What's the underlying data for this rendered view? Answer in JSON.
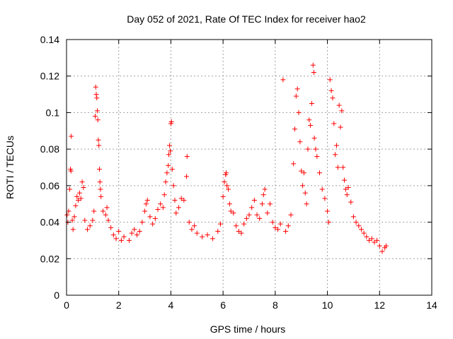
{
  "chart_data": {
    "type": "scatter",
    "title": "Day 052 of 2021, Rate Of TEC Index for receiver hao2",
    "xlabel": "GPS time / hours",
    "ylabel": "ROTI / TECUs",
    "xlim": [
      0,
      14
    ],
    "ylim": [
      0,
      0.14
    ],
    "x_ticks": [
      "0",
      "2",
      "4",
      "6",
      "8",
      "10",
      "12",
      "14"
    ],
    "y_ticks": [
      "0",
      "0.02",
      "0.04",
      "0.06",
      "0.08",
      "0.1",
      "0.12",
      "0.14"
    ],
    "grid": true,
    "marker": "plus",
    "series": [
      {
        "color": "#ff0000",
        "points": [
          [
            0.02,
            0.044
          ],
          [
            0.05,
            0.04
          ],
          [
            0.08,
            0.046
          ],
          [
            0.12,
            0.058
          ],
          [
            0.15,
            0.069
          ],
          [
            0.17,
            0.068
          ],
          [
            0.18,
            0.087
          ],
          [
            0.22,
            0.041
          ],
          [
            0.25,
            0.036
          ],
          [
            0.3,
            0.043
          ],
          [
            0.35,
            0.049
          ],
          [
            0.4,
            0.054
          ],
          [
            0.45,
            0.052
          ],
          [
            0.5,
            0.056
          ],
          [
            0.55,
            0.053
          ],
          [
            0.6,
            0.062
          ],
          [
            0.65,
            0.059
          ],
          [
            0.7,
            0.041
          ],
          [
            0.8,
            0.036
          ],
          [
            0.9,
            0.038
          ],
          [
            1.0,
            0.041
          ],
          [
            1.05,
            0.046
          ],
          [
            1.1,
            0.098
          ],
          [
            1.12,
            0.114
          ],
          [
            1.14,
            0.11
          ],
          [
            1.16,
            0.108
          ],
          [
            1.18,
            0.101
          ],
          [
            1.2,
            0.096
          ],
          [
            1.22,
            0.085
          ],
          [
            1.24,
            0.082
          ],
          [
            1.26,
            0.069
          ],
          [
            1.28,
            0.062
          ],
          [
            1.3,
            0.058
          ],
          [
            1.32,
            0.054
          ],
          [
            1.4,
            0.046
          ],
          [
            1.5,
            0.044
          ],
          [
            1.55,
            0.048
          ],
          [
            1.6,
            0.041
          ],
          [
            1.7,
            0.037
          ],
          [
            1.8,
            0.033
          ],
          [
            1.9,
            0.031
          ],
          [
            2.0,
            0.035
          ],
          [
            2.1,
            0.03
          ],
          [
            2.2,
            0.032
          ],
          [
            2.4,
            0.03
          ],
          [
            2.5,
            0.034
          ],
          [
            2.6,
            0.036
          ],
          [
            2.7,
            0.033
          ],
          [
            2.8,
            0.035
          ],
          [
            2.9,
            0.04
          ],
          [
            3.0,
            0.046
          ],
          [
            3.05,
            0.05
          ],
          [
            3.1,
            0.052
          ],
          [
            3.2,
            0.043
          ],
          [
            3.3,
            0.039
          ],
          [
            3.4,
            0.042
          ],
          [
            3.5,
            0.047
          ],
          [
            3.6,
            0.05
          ],
          [
            3.7,
            0.048
          ],
          [
            3.75,
            0.055
          ],
          [
            3.8,
            0.062
          ],
          [
            3.85,
            0.067
          ],
          [
            3.9,
            0.071
          ],
          [
            3.92,
            0.077
          ],
          [
            3.95,
            0.082
          ],
          [
            3.98,
            0.079
          ],
          [
            4.0,
            0.094
          ],
          [
            4.02,
            0.095
          ],
          [
            4.05,
            0.069
          ],
          [
            4.1,
            0.06
          ],
          [
            4.15,
            0.052
          ],
          [
            4.2,
            0.045
          ],
          [
            4.3,
            0.048
          ],
          [
            4.4,
            0.053
          ],
          [
            4.5,
            0.052
          ],
          [
            4.6,
            0.065
          ],
          [
            4.62,
            0.076
          ],
          [
            4.7,
            0.04
          ],
          [
            4.8,
            0.036
          ],
          [
            4.9,
            0.038
          ],
          [
            5.0,
            0.034
          ],
          [
            5.2,
            0.032
          ],
          [
            5.4,
            0.033
          ],
          [
            5.6,
            0.031
          ],
          [
            5.8,
            0.035
          ],
          [
            5.9,
            0.039
          ],
          [
            6.0,
            0.054
          ],
          [
            6.05,
            0.062
          ],
          [
            6.1,
            0.066
          ],
          [
            6.12,
            0.067
          ],
          [
            6.15,
            0.06
          ],
          [
            6.2,
            0.058
          ],
          [
            6.25,
            0.05
          ],
          [
            6.3,
            0.046
          ],
          [
            6.4,
            0.045
          ],
          [
            6.5,
            0.038
          ],
          [
            6.6,
            0.035
          ],
          [
            6.7,
            0.034
          ],
          [
            6.8,
            0.039
          ],
          [
            6.9,
            0.042
          ],
          [
            7.0,
            0.044
          ],
          [
            7.1,
            0.048
          ],
          [
            7.2,
            0.052
          ],
          [
            7.3,
            0.044
          ],
          [
            7.4,
            0.042
          ],
          [
            7.5,
            0.05
          ],
          [
            7.55,
            0.055
          ],
          [
            7.6,
            0.058
          ],
          [
            7.7,
            0.045
          ],
          [
            7.8,
            0.05
          ],
          [
            7.9,
            0.04
          ],
          [
            8.0,
            0.037
          ],
          [
            8.1,
            0.036
          ],
          [
            8.2,
            0.039
          ],
          [
            8.3,
            0.118
          ],
          [
            8.4,
            0.035
          ],
          [
            8.5,
            0.038
          ],
          [
            8.6,
            0.044
          ],
          [
            8.7,
            0.072
          ],
          [
            8.75,
            0.091
          ],
          [
            8.8,
            0.109
          ],
          [
            8.85,
            0.113
          ],
          [
            8.9,
            0.1
          ],
          [
            8.95,
            0.084
          ],
          [
            9.0,
            0.068
          ],
          [
            9.05,
            0.06
          ],
          [
            9.1,
            0.067
          ],
          [
            9.15,
            0.056
          ],
          [
            9.2,
            0.05
          ],
          [
            9.25,
            0.08
          ],
          [
            9.3,
            0.096
          ],
          [
            9.35,
            0.093
          ],
          [
            9.4,
            0.105
          ],
          [
            9.45,
            0.126
          ],
          [
            9.48,
            0.122
          ],
          [
            9.5,
            0.086
          ],
          [
            9.55,
            0.08
          ],
          [
            9.6,
            0.076
          ],
          [
            9.7,
            0.067
          ],
          [
            9.8,
            0.058
          ],
          [
            9.9,
            0.053
          ],
          [
            10.0,
            0.046
          ],
          [
            10.05,
            0.04
          ],
          [
            10.1,
            0.118
          ],
          [
            10.15,
            0.112
          ],
          [
            10.2,
            0.108
          ],
          [
            10.25,
            0.094
          ],
          [
            10.3,
            0.077
          ],
          [
            10.35,
            0.082
          ],
          [
            10.4,
            0.07
          ],
          [
            10.45,
            0.104
          ],
          [
            10.5,
            0.092
          ],
          [
            10.55,
            0.101
          ],
          [
            10.6,
            0.07
          ],
          [
            10.65,
            0.063
          ],
          [
            10.7,
            0.058
          ],
          [
            10.75,
            0.055
          ],
          [
            10.8,
            0.059
          ],
          [
            10.9,
            0.051
          ],
          [
            11.0,
            0.043
          ],
          [
            11.1,
            0.04
          ],
          [
            11.2,
            0.038
          ],
          [
            11.3,
            0.036
          ],
          [
            11.4,
            0.034
          ],
          [
            11.5,
            0.032
          ],
          [
            11.6,
            0.03
          ],
          [
            11.7,
            0.031
          ],
          [
            11.8,
            0.029
          ],
          [
            11.9,
            0.03
          ],
          [
            12.0,
            0.027
          ],
          [
            12.1,
            0.024
          ],
          [
            12.2,
            0.026
          ],
          [
            12.25,
            0.027
          ]
        ]
      }
    ]
  }
}
